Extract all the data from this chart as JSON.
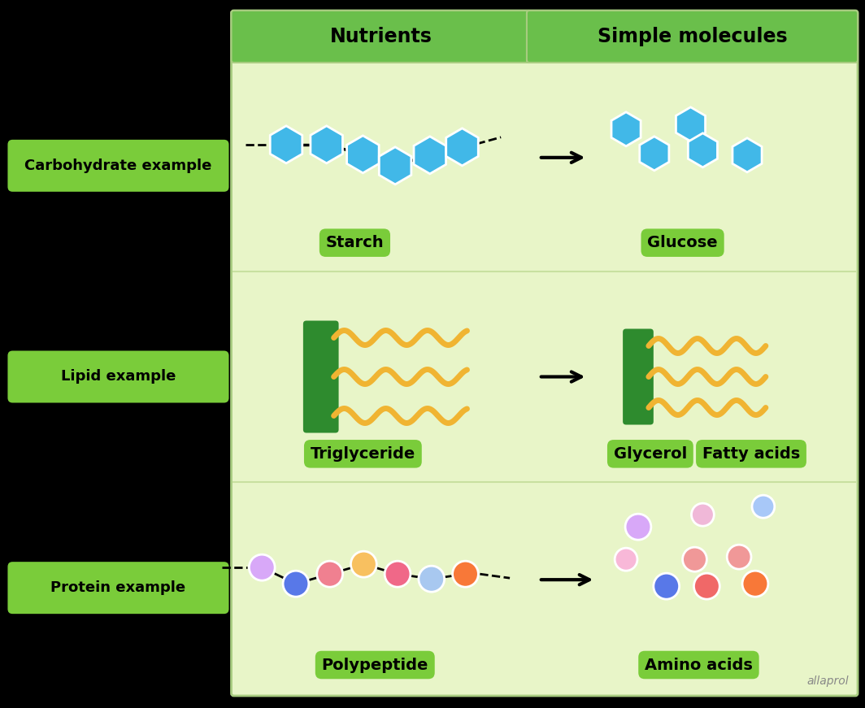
{
  "bg_color": "#000000",
  "panel_bg": "#e8f5c8",
  "header_green": "#6abf4b",
  "label_green": "#7acc3a",
  "blue_hex": "#41b8e8",
  "green_rect": "#2e8b2e",
  "wavy_color": "#f0b432",
  "row_labels": [
    "Carbohydrate example",
    "Lipid example",
    "Protein example"
  ],
  "col_headers": [
    "Nutrients",
    "Simple molecules"
  ],
  "watermark": "allaprol",
  "divider_color": "#c8e0a0",
  "panel_border": "#a8cc80"
}
